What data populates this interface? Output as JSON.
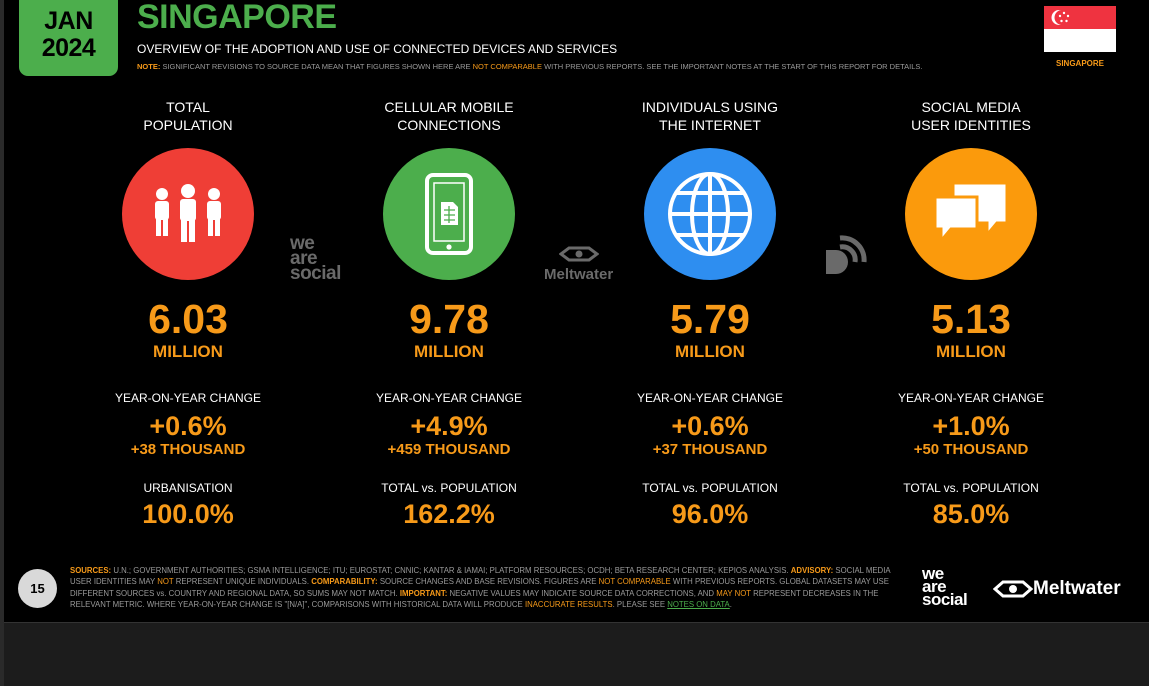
{
  "header": {
    "month": "JAN",
    "year": "2024",
    "title": "SINGAPORE",
    "subtitle": "OVERVIEW OF THE ADOPTION AND USE OF CONNECTED DEVICES AND SERVICES",
    "note_label": "NOTE:",
    "note_text_1": "SIGNIFICANT REVISIONS TO SOURCE DATA MEAN THAT FIGURES SHOWN HERE ARE",
    "note_highlight": "NOT COMPARABLE",
    "note_text_2": "WITH PREVIOUS REPORTS. SEE THE IMPORTANT NOTES AT THE START OF THIS REPORT FOR DETAILS.",
    "flag_label": "SINGAPORE"
  },
  "colors": {
    "green": "#4cae4c",
    "orange": "#f79a19",
    "red": "#ef3e36",
    "blue": "#2e8ef0",
    "amber": "#fb9a0c"
  },
  "stats": [
    {
      "heading_1": "TOTAL",
      "heading_2": "POPULATION",
      "icon": "people-icon",
      "value": "6.03",
      "unit": "MILLION",
      "yoy_label": "YEAR-ON-YEAR CHANGE",
      "yoy_pct": "+0.6%",
      "yoy_abs": "+38 THOUSAND",
      "ratio_label": "URBANISATION",
      "ratio": "100.0%"
    },
    {
      "heading_1": "CELLULAR MOBILE",
      "heading_2": "CONNECTIONS",
      "icon": "mobile-phone-icon",
      "value": "9.78",
      "unit": "MILLION",
      "yoy_label": "YEAR-ON-YEAR CHANGE",
      "yoy_pct": "+4.9%",
      "yoy_abs": "+459 THOUSAND",
      "ratio_label": "TOTAL vs. POPULATION",
      "ratio": "162.2%"
    },
    {
      "heading_1": "INDIVIDUALS USING",
      "heading_2": "THE INTERNET",
      "icon": "globe-icon",
      "value": "5.79",
      "unit": "MILLION",
      "yoy_label": "YEAR-ON-YEAR CHANGE",
      "yoy_pct": "+0.6%",
      "yoy_abs": "+37 THOUSAND",
      "ratio_label": "TOTAL vs. POPULATION",
      "ratio": "96.0%"
    },
    {
      "heading_1": "SOCIAL MEDIA",
      "heading_2": "USER IDENTITIES",
      "icon": "speech-bubbles-icon",
      "value": "5.13",
      "unit": "MILLION",
      "yoy_label": "YEAR-ON-YEAR CHANGE",
      "yoy_pct": "+1.0%",
      "yoy_abs": "+50 THOUSAND",
      "ratio_label": "TOTAL vs. POPULATION",
      "ratio": "85.0%"
    }
  ],
  "watermarks": {
    "we": "we",
    "are": "are",
    "social": "social",
    "meltwater": "Meltwater"
  },
  "footer": {
    "page_number": "15",
    "sources_label": "SOURCES:",
    "sources_text": "U.N.; GOVERNMENT AUTHORITIES; GSMA INTELLIGENCE; ITU; EUROSTAT; CNNIC; KANTAR & IAMAI; PLATFORM RESOURCES; OCDH; BETA RESEARCH CENTER; KEPIOS ANALYSIS.",
    "advisory_label": "ADVISORY:",
    "advisory_text_1": "SOCIAL MEDIA USER IDENTITIES MAY",
    "advisory_not": "NOT",
    "advisory_text_2": "REPRESENT UNIQUE INDIVIDUALS.",
    "comparability_label": "COMPARABILITY:",
    "comparability_text_1": "SOURCE CHANGES AND BASE REVISIONS. FIGURES ARE",
    "comparability_not_comparable": "NOT COMPARABLE",
    "comparability_text_2": "WITH PREVIOUS REPORTS. GLOBAL DATASETS MAY USE DIFFERENT SOURCES vs. COUNTRY AND REGIONAL DATA, SO SUMS MAY NOT MATCH.",
    "important_label": "IMPORTANT:",
    "important_text_1": "NEGATIVE VALUES MAY INDICATE SOURCE DATA CORRECTIONS, AND",
    "important_may_not": "MAY NOT",
    "important_text_2": "REPRESENT DECREASES IN THE RELEVANT METRIC. WHERE YEAR-ON-YEAR CHANGE IS \"[N/A]\", COMPARISONS WITH HISTORICAL DATA WILL PRODUCE",
    "inaccurate": "INACCURATE RESULTS",
    "please_see": ". PLEASE SEE",
    "notes_link": "NOTES ON DATA",
    "end": "."
  }
}
